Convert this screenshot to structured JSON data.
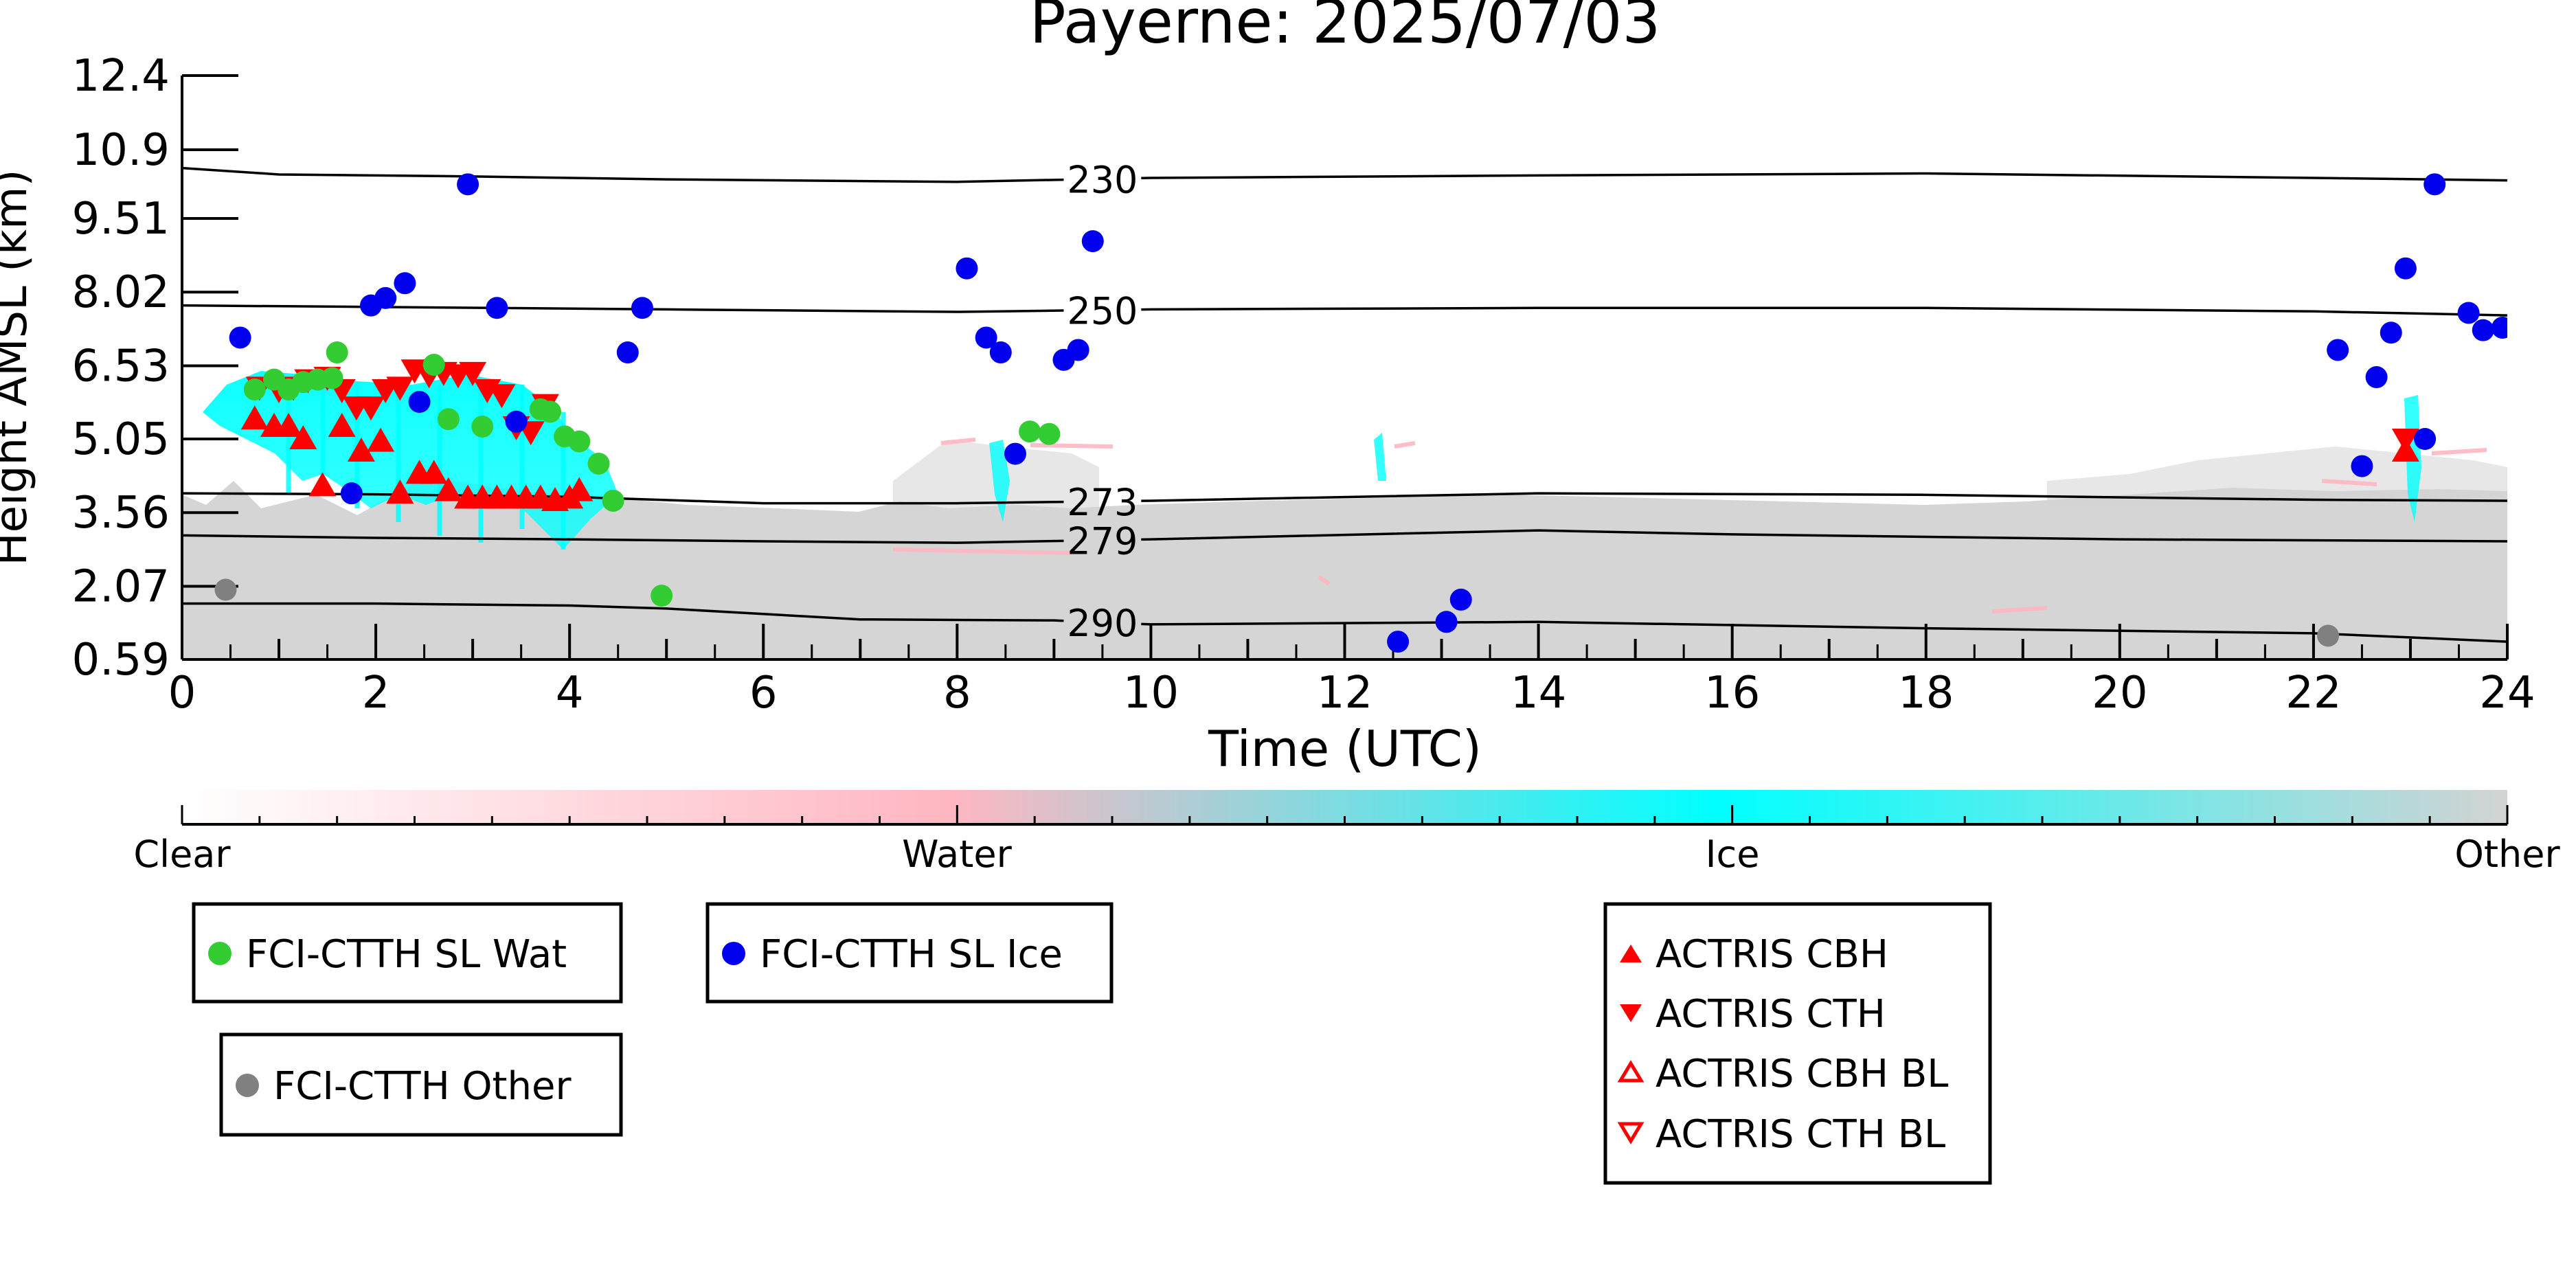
{
  "chart_data": {
    "type": "scatter",
    "title": "Payerne: 2025/07/03",
    "xlabel": "Time (UTC)",
    "ylabel": "Height AMSL (km)",
    "xlim": [
      0,
      24
    ],
    "ylim": [
      0.59,
      12.4
    ],
    "x_ticks": [
      0,
      2,
      4,
      6,
      8,
      10,
      12,
      14,
      16,
      18,
      20,
      22,
      24
    ],
    "y_ticks": [
      0.59,
      2.07,
      3.56,
      5.05,
      6.53,
      8.02,
      9.51,
      10.9,
      12.4
    ],
    "y_tick_labels": [
      "0.59",
      "2.07",
      "3.56",
      "5.05",
      "6.53",
      "8.02",
      "9.51",
      "10.9",
      "12.4"
    ],
    "grid": false,
    "isotherms": [
      {
        "label": "230",
        "points": [
          [
            0,
            10.53
          ],
          [
            1,
            10.4
          ],
          [
            3,
            10.36
          ],
          [
            5,
            10.3
          ],
          [
            8,
            10.25
          ],
          [
            10,
            10.33
          ],
          [
            14,
            10.38
          ],
          [
            18,
            10.42
          ],
          [
            22,
            10.33
          ],
          [
            24,
            10.28
          ]
        ]
      },
      {
        "label": "250",
        "points": [
          [
            0,
            7.75
          ],
          [
            2,
            7.72
          ],
          [
            5,
            7.67
          ],
          [
            8,
            7.62
          ],
          [
            10,
            7.67
          ],
          [
            14,
            7.7
          ],
          [
            18,
            7.7
          ],
          [
            22,
            7.63
          ],
          [
            24,
            7.55
          ]
        ]
      },
      {
        "label": "273",
        "points": [
          [
            0,
            3.95
          ],
          [
            2,
            3.93
          ],
          [
            4,
            3.88
          ],
          [
            6,
            3.75
          ],
          [
            8,
            3.75
          ],
          [
            10,
            3.8
          ],
          [
            14,
            3.95
          ],
          [
            18,
            3.92
          ],
          [
            22,
            3.82
          ],
          [
            24,
            3.8
          ]
        ]
      },
      {
        "label": "279",
        "points": [
          [
            0,
            3.1
          ],
          [
            2,
            3.05
          ],
          [
            4,
            3.02
          ],
          [
            6,
            2.98
          ],
          [
            8,
            2.95
          ],
          [
            10,
            3.02
          ],
          [
            14,
            3.2
          ],
          [
            16,
            3.12
          ],
          [
            20,
            3.02
          ],
          [
            24,
            2.98
          ]
        ]
      },
      {
        "label": "290",
        "points": [
          [
            0,
            1.72
          ],
          [
            2,
            1.72
          ],
          [
            4,
            1.68
          ],
          [
            5,
            1.62
          ],
          [
            7,
            1.4
          ],
          [
            9,
            1.38
          ],
          [
            10,
            1.3
          ],
          [
            14,
            1.35
          ],
          [
            18,
            1.22
          ],
          [
            22,
            1.12
          ],
          [
            24,
            0.95
          ]
        ]
      }
    ],
    "colorbar": {
      "labels": [
        "Clear",
        "Water",
        "Ice",
        "Other"
      ],
      "colors": [
        "#ffffff",
        "#ffb6c1",
        "#00ffff",
        "#d3d3d3"
      ]
    },
    "series": [
      {
        "name": "FCI-CTTH SL Wat",
        "marker": "circle",
        "color": "#33cc33",
        "points": [
          [
            0.75,
            6.05
          ],
          [
            0.95,
            6.25
          ],
          [
            1.1,
            6.05
          ],
          [
            1.25,
            6.2
          ],
          [
            1.4,
            6.25
          ],
          [
            1.55,
            6.28
          ],
          [
            1.6,
            6.8
          ],
          [
            2.6,
            6.55
          ],
          [
            2.75,
            5.45
          ],
          [
            3.1,
            5.3
          ],
          [
            3.7,
            5.65
          ],
          [
            3.8,
            5.6
          ],
          [
            3.95,
            5.1
          ],
          [
            4.1,
            5.0
          ],
          [
            4.3,
            4.55
          ],
          [
            4.45,
            3.8
          ],
          [
            4.95,
            1.88
          ],
          [
            8.75,
            5.2
          ],
          [
            8.95,
            5.15
          ]
        ]
      },
      {
        "name": "FCI-CTTH SL Ice",
        "marker": "circle",
        "color": "#0000ee",
        "points": [
          [
            0.6,
            7.1
          ],
          [
            1.75,
            3.95
          ],
          [
            1.95,
            7.75
          ],
          [
            2.1,
            7.9
          ],
          [
            2.3,
            8.2
          ],
          [
            2.45,
            5.8
          ],
          [
            2.95,
            10.2
          ],
          [
            3.25,
            7.7
          ],
          [
            3.45,
            5.4
          ],
          [
            4.6,
            6.8
          ],
          [
            4.75,
            7.7
          ],
          [
            8.1,
            8.5
          ],
          [
            8.3,
            7.1
          ],
          [
            8.45,
            6.8
          ],
          [
            8.6,
            4.75
          ],
          [
            9.1,
            6.65
          ],
          [
            9.25,
            6.85
          ],
          [
            9.4,
            9.05
          ],
          [
            12.55,
            0.95
          ],
          [
            13.05,
            1.35
          ],
          [
            13.2,
            1.8
          ],
          [
            22.25,
            6.85
          ],
          [
            22.5,
            4.5
          ],
          [
            22.65,
            6.3
          ],
          [
            22.8,
            7.2
          ],
          [
            22.95,
            8.5
          ],
          [
            23.15,
            5.05
          ],
          [
            23.25,
            10.2
          ],
          [
            23.6,
            7.6
          ],
          [
            23.75,
            7.25
          ],
          [
            23.95,
            7.3
          ]
        ]
      },
      {
        "name": "FCI-CTTH Other",
        "marker": "circle",
        "color": "#808080",
        "points": [
          [
            0.45,
            2.0
          ],
          [
            22.15,
            1.07
          ]
        ]
      },
      {
        "name": "ACTRIS CBH",
        "marker": "triangle-up",
        "color": "#ff0000",
        "points": [
          [
            0.75,
            5.45
          ],
          [
            0.95,
            5.3
          ],
          [
            1.1,
            5.3
          ],
          [
            1.25,
            5.05
          ],
          [
            1.45,
            4.1
          ],
          [
            1.65,
            5.3
          ],
          [
            1.85,
            4.8
          ],
          [
            2.05,
            5.0
          ],
          [
            2.25,
            3.95
          ],
          [
            2.45,
            4.35
          ],
          [
            2.6,
            4.35
          ],
          [
            2.75,
            4.0
          ],
          [
            2.95,
            3.85
          ],
          [
            3.1,
            3.85
          ],
          [
            3.25,
            3.85
          ],
          [
            3.4,
            3.85
          ],
          [
            3.55,
            3.85
          ],
          [
            3.7,
            3.85
          ],
          [
            3.85,
            3.8
          ],
          [
            4.0,
            3.85
          ],
          [
            4.1,
            4.0
          ],
          [
            22.95,
            4.8
          ]
        ]
      },
      {
        "name": "ACTRIS CTH",
        "marker": "triangle-down",
        "color": "#ff0000",
        "points": [
          [
            0.8,
            6.1
          ],
          [
            1.0,
            6.05
          ],
          [
            1.15,
            6.1
          ],
          [
            1.3,
            6.25
          ],
          [
            1.5,
            6.3
          ],
          [
            1.65,
            6.05
          ],
          [
            1.8,
            5.7
          ],
          [
            1.95,
            5.7
          ],
          [
            2.1,
            6.05
          ],
          [
            2.25,
            6.1
          ],
          [
            2.4,
            6.45
          ],
          [
            2.55,
            6.35
          ],
          [
            2.7,
            6.4
          ],
          [
            2.85,
            6.35
          ],
          [
            3.0,
            6.4
          ],
          [
            3.15,
            6.05
          ],
          [
            3.3,
            5.95
          ],
          [
            3.45,
            5.3
          ],
          [
            3.6,
            5.2
          ],
          [
            3.75,
            5.75
          ],
          [
            22.95,
            5.05
          ]
        ]
      },
      {
        "name": "ACTRIS CBH BL",
        "marker": "triangle-up-open",
        "color": "#ff0000",
        "points": []
      },
      {
        "name": "ACTRIS CTH BL",
        "marker": "triangle-down-open",
        "color": "#ff0000",
        "points": []
      }
    ],
    "legend": [
      {
        "group": "fci-wat",
        "entries": [
          "FCI-CTTH SL Wat"
        ]
      },
      {
        "group": "fci-ice",
        "entries": [
          "FCI-CTTH SL Ice"
        ]
      },
      {
        "group": "fci-other",
        "entries": [
          "FCI-CTTH Other"
        ]
      },
      {
        "group": "actris",
        "entries": [
          "ACTRIS CBH",
          "ACTRIS CTH",
          "ACTRIS CBH BL",
          "ACTRIS CTH BL"
        ]
      }
    ]
  }
}
